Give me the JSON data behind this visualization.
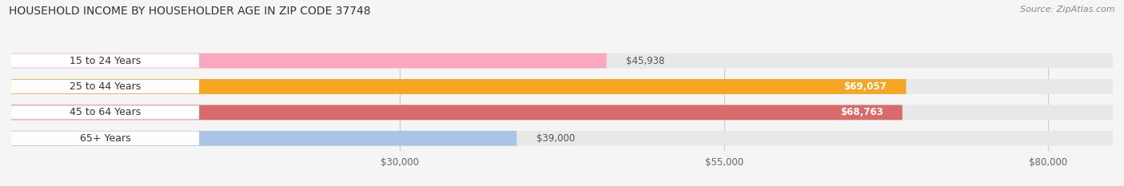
{
  "title": "HOUSEHOLD INCOME BY HOUSEHOLDER AGE IN ZIP CODE 37748",
  "source": "Source: ZipAtlas.com",
  "categories": [
    "15 to 24 Years",
    "25 to 44 Years",
    "45 to 64 Years",
    "65+ Years"
  ],
  "values": [
    45938,
    69057,
    68763,
    39000
  ],
  "bar_colors": [
    "#f9a8c0",
    "#f5a623",
    "#d96b6b",
    "#aac4e8"
  ],
  "label_colors": [
    "#555555",
    "#ffffff",
    "#ffffff",
    "#555555"
  ],
  "bar_bg_color": "#e8e8e8",
  "tick_labels": [
    "$30,000",
    "$55,000",
    "$80,000"
  ],
  "tick_values": [
    30000,
    55000,
    80000
  ],
  "x_min": 0,
  "x_max": 85000,
  "fig_width": 14.06,
  "fig_height": 2.33,
  "title_fontsize": 10,
  "bar_label_fontsize": 8.5,
  "category_fontsize": 9,
  "source_fontsize": 8
}
